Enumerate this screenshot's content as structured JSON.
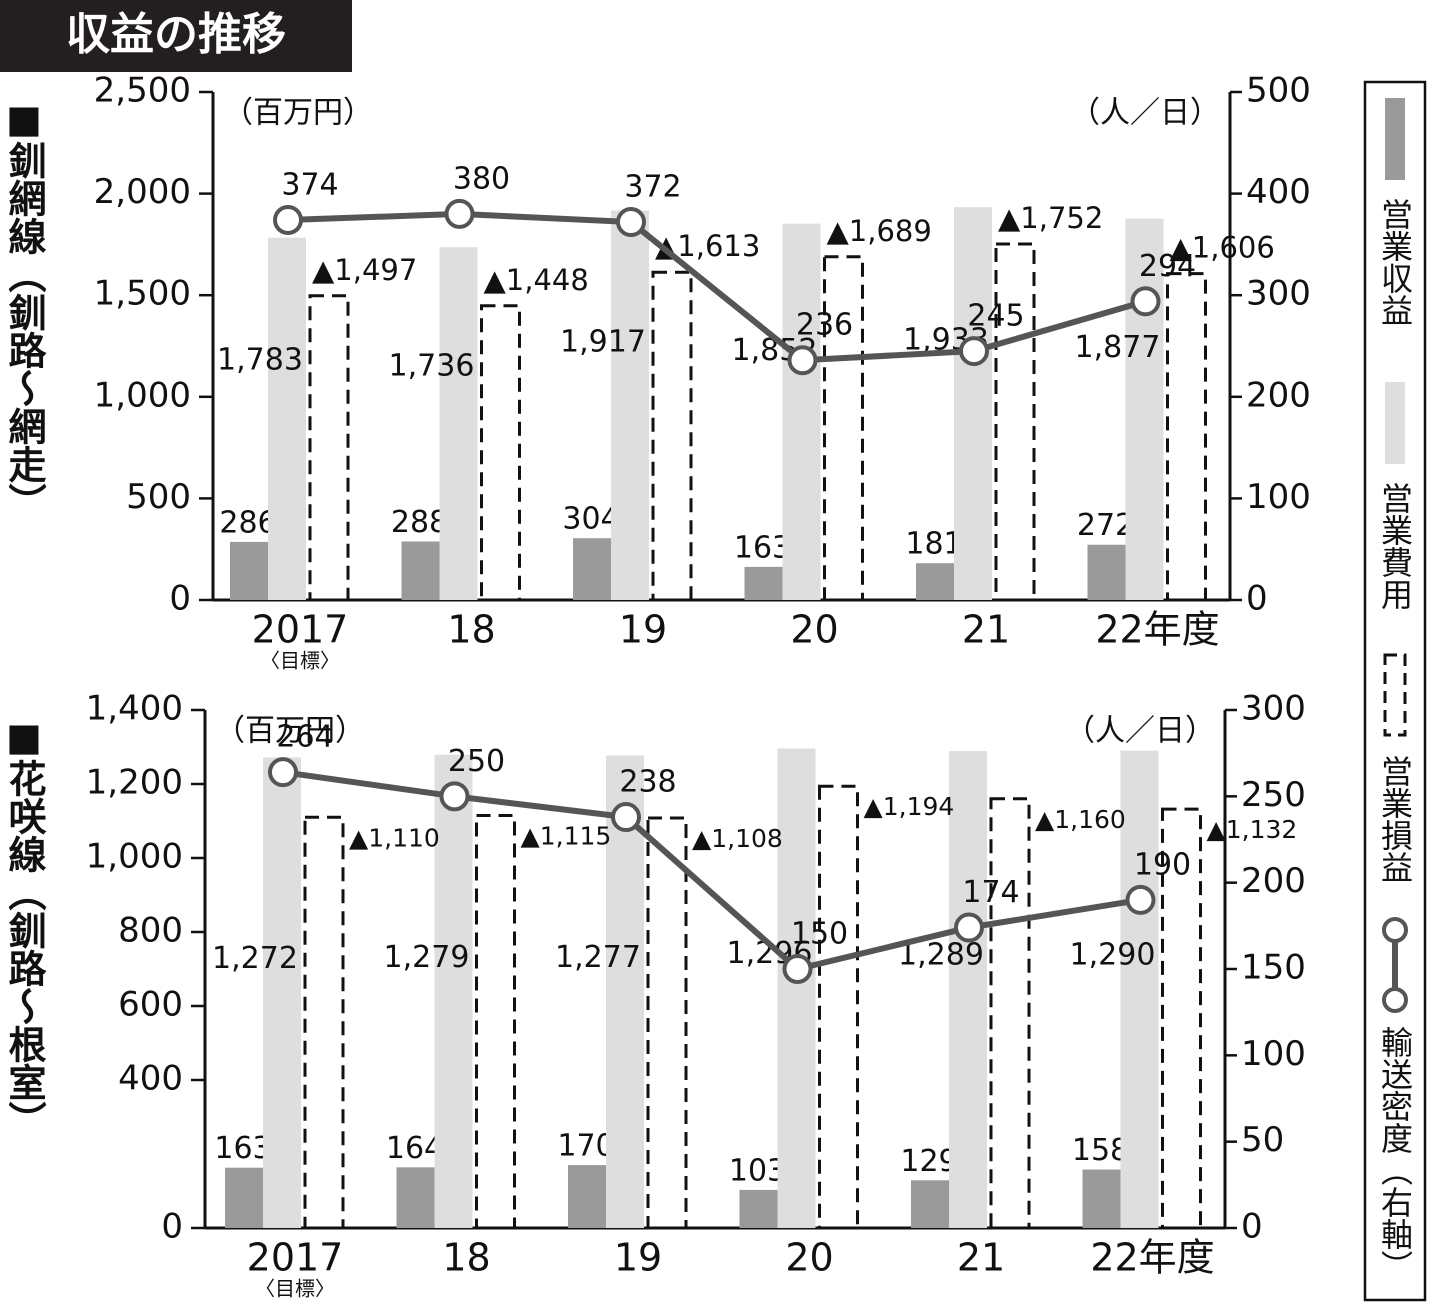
{
  "title": "収益の推移",
  "legend_position": "right",
  "chart_data": [
    {
      "type": "bar",
      "title": "■釧網線（釧路～網走）",
      "unit_left": "（百万円）",
      "unit_right": "（人／日）",
      "categories": [
        "2017",
        "18",
        "19",
        "20",
        "21",
        "22年度"
      ],
      "category_notes": [
        "〈目標〉",
        null,
        null,
        null,
        null,
        null
      ],
      "ylim": [
        0,
        2500
      ],
      "yticks": [
        0,
        500,
        {
          "value": 1000,
          "label": "1,000"
        },
        {
          "value": 1500,
          "label": "1,500"
        },
        {
          "value": 2000,
          "label": "2,000"
        },
        {
          "value": 2500,
          "label": "2,500"
        }
      ],
      "y2lim": [
        0,
        500
      ],
      "y2ticks": [
        0,
        100,
        200,
        300,
        400,
        500
      ],
      "series": [
        {
          "name": "営業収益",
          "type": "bar",
          "color": "#9a9a9a",
          "values": [
            286,
            288,
            304,
            163,
            181,
            272
          ]
        },
        {
          "name": "営業費用",
          "type": "bar",
          "color": "#dedede",
          "values": [
            1783,
            1736,
            1917,
            1852,
            1933,
            1877
          ],
          "value_labels": [
            "1,783",
            "1,736",
            "1,917",
            "1,852",
            "1,933",
            "1,877"
          ]
        },
        {
          "name": "営業損益",
          "type": "outline-bar",
          "color": "#111111",
          "values": [
            -1497,
            -1448,
            -1613,
            -1689,
            -1752,
            -1606
          ],
          "value_labels": [
            "▲1,497",
            "▲1,448",
            "▲1,613",
            "▲1,689",
            "▲1,752",
            "▲1,606"
          ]
        },
        {
          "name": "輸送密度（右軸）",
          "type": "line",
          "axis": "y2",
          "color": "#555555",
          "values": [
            374,
            380,
            372,
            236,
            245,
            294
          ]
        }
      ]
    },
    {
      "type": "bar",
      "title": "■花咲線（釧路～根室）",
      "unit_left": "（百万円）",
      "unit_right": "（人／日）",
      "categories": [
        "2017",
        "18",
        "19",
        "20",
        "21",
        "22年度"
      ],
      "category_notes": [
        "〈目標〉",
        null,
        null,
        null,
        null,
        null
      ],
      "ylim": [
        0,
        1400
      ],
      "yticks": [
        0,
        400,
        600,
        800,
        {
          "value": 1000,
          "label": "1,000"
        },
        {
          "value": 1200,
          "label": "1,200"
        },
        {
          "value": 1400,
          "label": "1,400"
        }
      ],
      "y2lim": [
        0,
        300
      ],
      "y2ticks": [
        0,
        50,
        100,
        150,
        200,
        250,
        300
      ],
      "series": [
        {
          "type": "bar",
          "color": "#9a9a9a",
          "values": [
            163,
            164,
            170,
            103,
            129,
            158
          ]
        },
        {
          "type": "bar",
          "color": "#dedede",
          "values": [
            1272,
            1279,
            1277,
            1296,
            1289,
            1290
          ],
          "value_labels": [
            "1,272",
            "1,279",
            "1,277",
            "1,296",
            "1,289",
            "1,290"
          ]
        },
        {
          "type": "outline-bar",
          "color": "#111111",
          "values": [
            -1110,
            -1115,
            -1108,
            -1194,
            -1160,
            -1132
          ],
          "value_labels": [
            "▲1,110",
            "▲1,115",
            "▲1,108",
            "▲1,194",
            "▲1,160",
            "▲1,132"
          ]
        },
        {
          "type": "line",
          "axis": "y2",
          "color": "#555555",
          "values": [
            264,
            250,
            238,
            150,
            174,
            190
          ]
        }
      ]
    }
  ]
}
